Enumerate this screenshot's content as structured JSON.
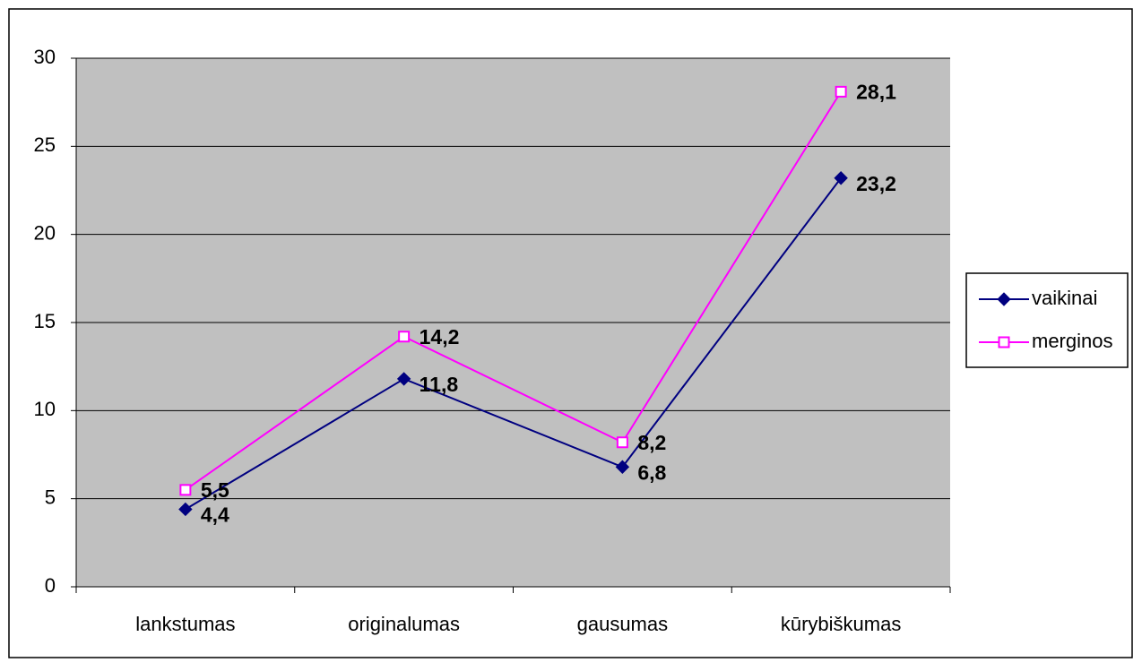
{
  "chart_data": {
    "type": "line",
    "categories": [
      "lankstumas",
      "originalumas",
      "gausumas",
      "kūrybiškumas"
    ],
    "series": [
      {
        "name": "vaikinai",
        "color": "#000080",
        "values": [
          4.4,
          11.8,
          6.8,
          23.2
        ],
        "value_labels": [
          "4,4",
          "11,8",
          "6,8",
          "23,2"
        ]
      },
      {
        "name": "merginos",
        "color": "#ff00ff",
        "values": [
          5.5,
          14.2,
          8.2,
          28.1
        ],
        "value_labels": [
          "5,5",
          "14,2",
          "8,2",
          "28,1"
        ]
      }
    ],
    "ylim": [
      0,
      30
    ],
    "yticks": [
      0,
      5,
      10,
      15,
      20,
      25,
      30
    ],
    "grid": true,
    "legend": "right"
  }
}
